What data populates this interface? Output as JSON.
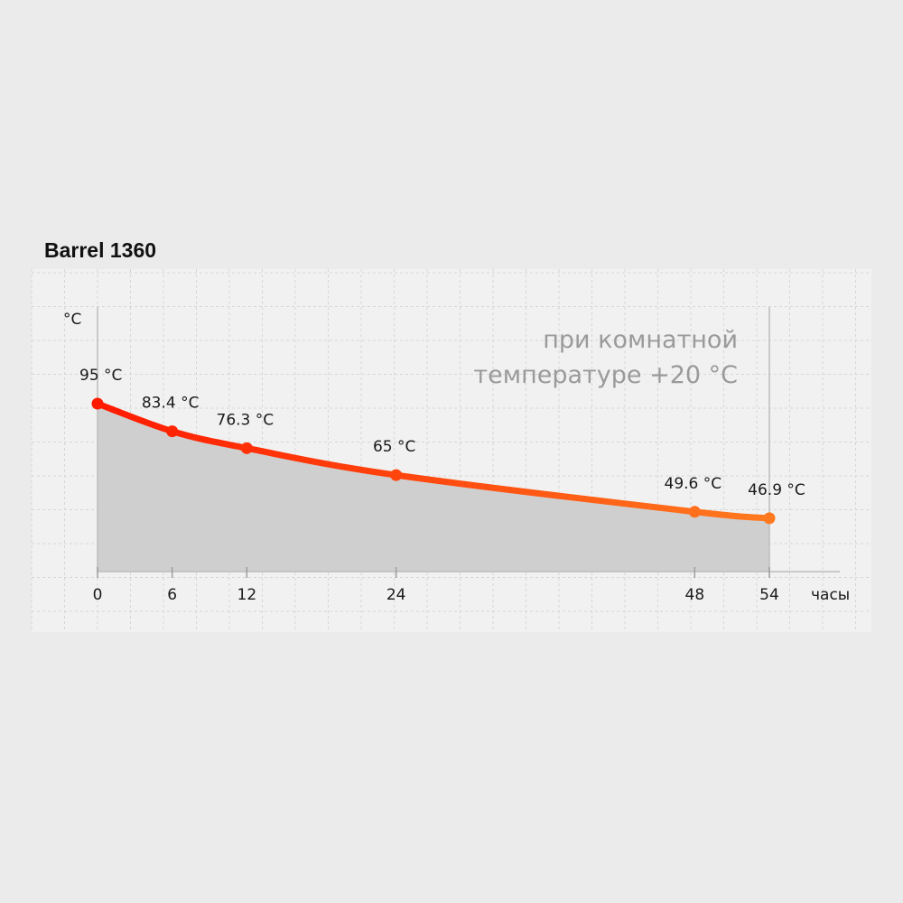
{
  "chart_title": "Barrel 1360",
  "chart_data": {
    "type": "area",
    "title": "Barrel 1360",
    "ylabel": "°C",
    "xlabel": "часы",
    "x": [
      0,
      6,
      12,
      24,
      48,
      54
    ],
    "series": [
      {
        "values": [
          95,
          83.4,
          76.3,
          65,
          49.6,
          46.9
        ],
        "labels": [
          "95 °C",
          "83.4 °C",
          "76.3 °C",
          "65 °C",
          "49.6 °C",
          "46.9 °C"
        ]
      }
    ],
    "x_tick_labels": [
      "0",
      "6",
      "12",
      "24",
      "48",
      "54"
    ],
    "note": [
      "при комнатной",
      "температуре +20 °C"
    ],
    "colors": {
      "line_start": "#ff1a00",
      "line_end": "#ff7a1f",
      "area": "#cfcfcf",
      "plot_background": "#f1f1f1",
      "grid": "#d6d6d6"
    },
    "grid": true
  }
}
